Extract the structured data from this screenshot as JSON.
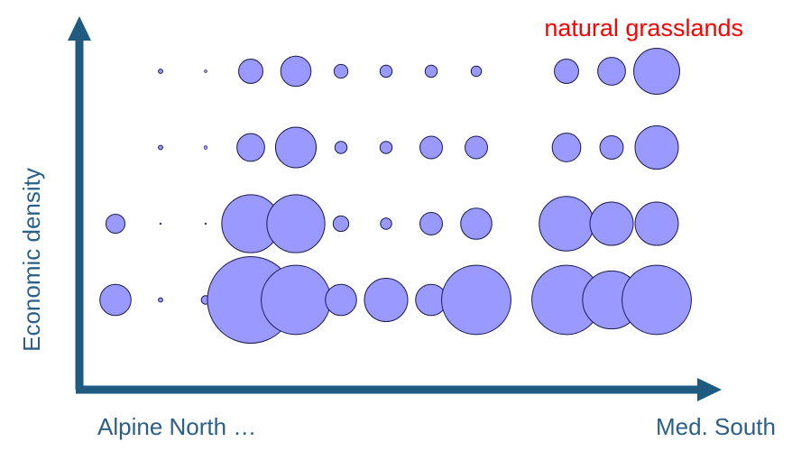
{
  "chart_data": {
    "type": "scatter",
    "title": "natural grasslands",
    "ylabel": "Economic density",
    "x_labels": {
      "left": "Alpine North …",
      "right": "Med. South"
    },
    "n_columns": 13,
    "n_rows": 4,
    "value_encoding": "relative bubble radius, max = 1.0",
    "rows": [
      {
        "row": 4,
        "values": [
          0,
          0.05,
          0.03,
          0.28,
          0.35,
          0.16,
          0.14,
          0.14,
          0.12,
          0,
          0.28,
          0.32,
          0.53
        ]
      },
      {
        "row": 3,
        "values": [
          0,
          0.05,
          0.04,
          0.32,
          0.47,
          0.14,
          0.14,
          0.26,
          0.26,
          0,
          0.33,
          0.27,
          0.5
        ]
      },
      {
        "row": 2,
        "values": [
          0.22,
          0.02,
          0.02,
          0.67,
          0.67,
          0.18,
          0.13,
          0.26,
          0.36,
          0,
          0.63,
          0.5,
          0.5
        ]
      },
      {
        "row": 1,
        "values": [
          0.36,
          0.05,
          0.1,
          1.0,
          0.8,
          0.36,
          0.5,
          0.36,
          0.8,
          0,
          0.8,
          0.67,
          0.8
        ]
      }
    ],
    "colors": {
      "bubble_fill": "#9999ff",
      "bubble_stroke": "#1a1a4d",
      "axis": "#1f5a80",
      "label": "#2a5f8a",
      "title": "#ff0000"
    }
  }
}
